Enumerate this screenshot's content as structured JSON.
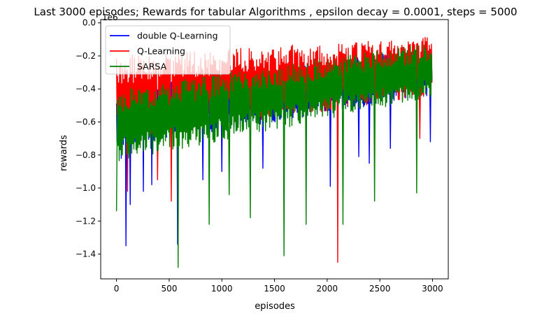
{
  "chart_data": {
    "type": "line",
    "title": "Last 3000 episodes; Rewards for tabular Algorithms , epsilon decay = 0.0001, steps = 5000",
    "xlabel": "episodes",
    "ylabel": "rewards",
    "y_offset_label": "1e6",
    "xlim": [
      -150,
      3150
    ],
    "ylim": [
      -1.55,
      0.02
    ],
    "y_scale_note": "values in units of 1e6",
    "xticks": [
      0,
      500,
      1000,
      1500,
      2000,
      2500,
      3000
    ],
    "xtick_labels": [
      "0",
      "500",
      "1000",
      "1500",
      "2000",
      "2500",
      "3000"
    ],
    "yticks": [
      0.0,
      -0.2,
      -0.4,
      -0.6,
      -0.8,
      -1.0,
      -1.2,
      -1.4
    ],
    "ytick_labels": [
      "0.0",
      "−0.2",
      "−0.4",
      "−0.6",
      "−0.8",
      "−1.0",
      "−1.2",
      "−1.4"
    ],
    "grid": false,
    "legend_position": "top-left",
    "x_range": [
      0,
      2999
    ],
    "series": [
      {
        "name": "double Q-Learning",
        "color": "#0000ff",
        "x_range": [
          0,
          2999
        ],
        "band_start": [
          -0.75,
          -0.4
        ],
        "band_end": [
          -0.45,
          -0.15
        ],
        "dips": [
          [
            88,
            -1.35
          ],
          [
            130,
            -1.1
          ],
          [
            45,
            -0.82
          ],
          [
            255,
            -1.02
          ],
          [
            335,
            -0.98
          ],
          [
            580,
            -1.34
          ],
          [
            820,
            -0.95
          ],
          [
            1000,
            -0.9
          ],
          [
            1390,
            -0.88
          ],
          [
            2030,
            -0.99
          ],
          [
            2300,
            -0.81
          ],
          [
            2400,
            -0.85
          ],
          [
            2600,
            -0.76
          ],
          [
            2980,
            -0.72
          ]
        ]
      },
      {
        "name": "Q-Learning",
        "color": "#ff0000",
        "x_range": [
          0,
          2999
        ],
        "band_start": [
          -0.7,
          -0.2
        ],
        "band_end": [
          -0.45,
          -0.08
        ],
        "dips": [
          [
            105,
            -1.02
          ],
          [
            390,
            -0.95
          ],
          [
            520,
            -1.08
          ],
          [
            2100,
            -1.45
          ],
          [
            2880,
            -0.7
          ]
        ]
      },
      {
        "name": "SARSA",
        "color": "#008000",
        "x_range": [
          0,
          2999
        ],
        "band_start": [
          -0.85,
          -0.4
        ],
        "band_end": [
          -0.45,
          -0.12
        ],
        "dips": [
          [
            0,
            -1.14
          ],
          [
            585,
            -1.48
          ],
          [
            880,
            -1.22
          ],
          [
            1070,
            -1.04
          ],
          [
            1270,
            -1.18
          ],
          [
            1590,
            -1.41
          ],
          [
            1800,
            -1.22
          ],
          [
            2150,
            -1.22
          ],
          [
            2450,
            -1.08
          ],
          [
            2850,
            -1.03
          ]
        ]
      }
    ]
  }
}
